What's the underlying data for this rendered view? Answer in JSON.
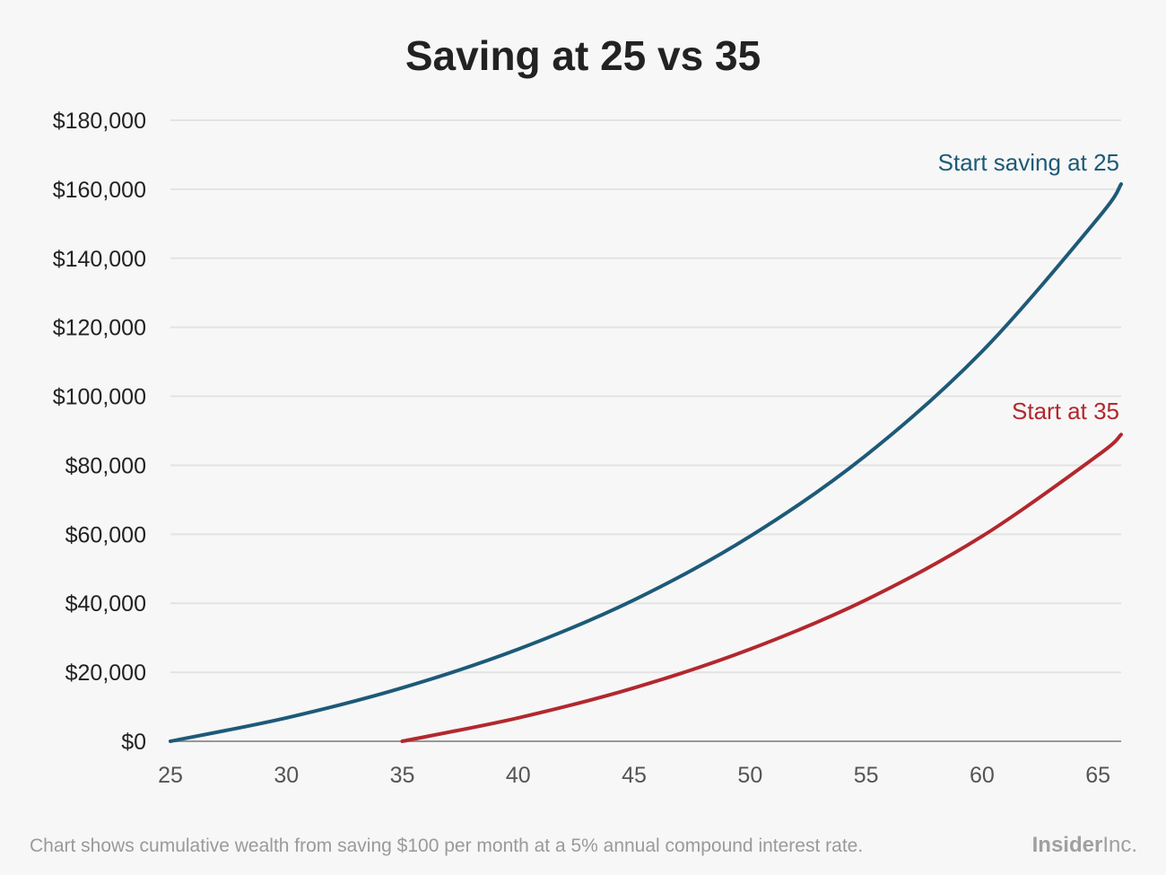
{
  "chart_data": {
    "type": "line",
    "title": "Saving at 25 vs 35",
    "xlabel": "",
    "ylabel": "",
    "xlim": [
      25,
      66
    ],
    "ylim": [
      0,
      180000
    ],
    "x_ticks": [
      25,
      30,
      35,
      40,
      45,
      50,
      55,
      60,
      65
    ],
    "x_tick_labels": [
      "25",
      "30",
      "35",
      "40",
      "45",
      "50",
      "55",
      "60",
      "65"
    ],
    "y_ticks": [
      0,
      20000,
      40000,
      60000,
      80000,
      100000,
      120000,
      140000,
      160000,
      180000
    ],
    "y_tick_labels": [
      "$0",
      "$20,000",
      "$40,000",
      "$60,000",
      "$80,000",
      "$100,000",
      "$120,000",
      "$140,000",
      "$160,000",
      "$180,000"
    ],
    "grid": true,
    "legend": "direct labels at line ends",
    "series": [
      {
        "name": "Start saving at 25",
        "color": "#1d5a78",
        "x": [
          25,
          30,
          35,
          40,
          45,
          50,
          55,
          60,
          65,
          66
        ],
        "values": [
          0,
          6800,
          15500,
          26700,
          41000,
          59400,
          82900,
          113000,
          151600,
          161500
        ]
      },
      {
        "name": "Start at 35",
        "color": "#b2282e",
        "x": [
          35,
          40,
          45,
          50,
          55,
          60,
          65,
          66
        ],
        "values": [
          0,
          6800,
          15500,
          26700,
          41000,
          59400,
          82900,
          88900
        ]
      }
    ]
  },
  "footnote": "Chart shows cumulative wealth from saving $100 per month at a 5% annual compound interest rate.",
  "brand": {
    "bold": "Insider",
    "regular": "Inc."
  },
  "colors": {
    "background": "#f7f7f7",
    "grid": "#e3e3e3",
    "axis": "#999999"
  }
}
